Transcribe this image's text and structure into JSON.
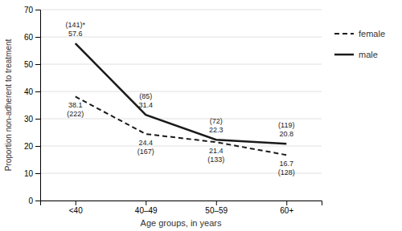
{
  "chart_data": {
    "type": "line",
    "categories": [
      "<40",
      "40–49",
      "50–59",
      "60+"
    ],
    "series": [
      {
        "name": "female",
        "color": "#1a1a1a",
        "line_style": "dashed",
        "values": [
          38.1,
          24.4,
          21.4,
          16.7
        ],
        "sample_labels": [
          "(222)",
          "(167)",
          "(133)",
          "(128)"
        ]
      },
      {
        "name": "male",
        "color": "#1a1a1a",
        "line_style": "solid",
        "values": [
          57.6,
          31.4,
          22.3,
          20.8
        ],
        "sample_labels": [
          "(141)*",
          "(85)",
          "(72)",
          "(119)"
        ]
      }
    ],
    "xlabel": "Age groups, in years",
    "ylabel": "Proportion non-adherent to treatment",
    "ylim": [
      0,
      70
    ],
    "yticks": [
      0,
      10,
      20,
      30,
      40,
      50,
      60,
      70
    ],
    "grid": true,
    "legend": "right",
    "data_labels": true
  }
}
